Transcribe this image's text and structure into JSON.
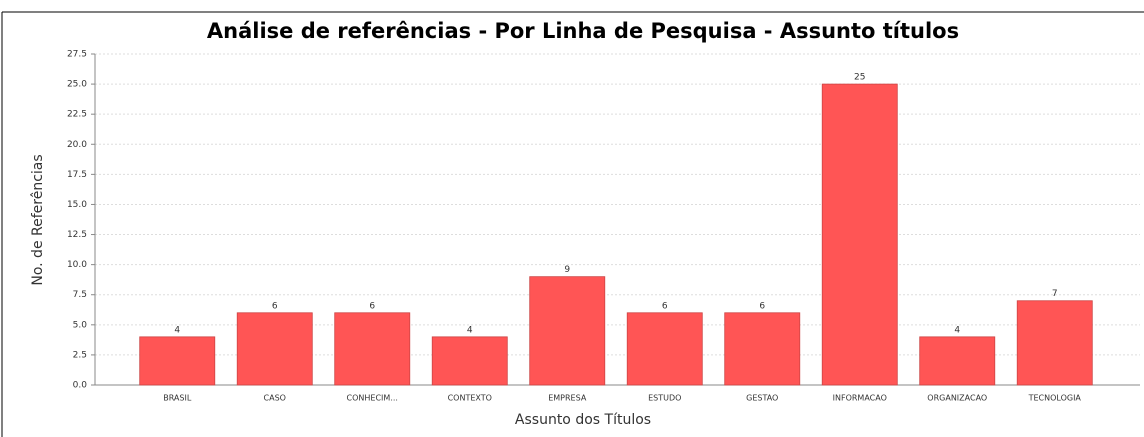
{
  "chart_data": {
    "type": "bar",
    "title": "Análise de referências - Por Linha de Pesquisa - Assunto títulos",
    "x_label": "Assunto dos Títulos",
    "y_label": "No. de Referências",
    "categories": [
      "BRASIL",
      "CASO",
      "CONHECIM...",
      "CONTEXTO",
      "EMPRESA",
      "ESTUDO",
      "GESTAO",
      "INFORMACAO",
      "ORGANIZACAO",
      "TECNOLOGIA"
    ],
    "values": [
      4,
      6,
      6,
      4,
      9,
      6,
      6,
      25,
      4,
      7
    ],
    "color": "#ff5555",
    "ylim": [
      0,
      27.5
    ],
    "yticks": [
      {
        "value": 0,
        "label": "0.0"
      },
      2.5,
      {
        "value": 5,
        "label": "5.0"
      },
      7.5,
      {
        "value": 10,
        "label": "10.0"
      },
      12.5,
      {
        "value": 15,
        "label": "15.0"
      },
      17.5,
      {
        "value": 20,
        "label": "20.0"
      },
      22.5,
      {
        "value": 25,
        "label": "25.0"
      },
      27.5
    ],
    "grid": true
  }
}
